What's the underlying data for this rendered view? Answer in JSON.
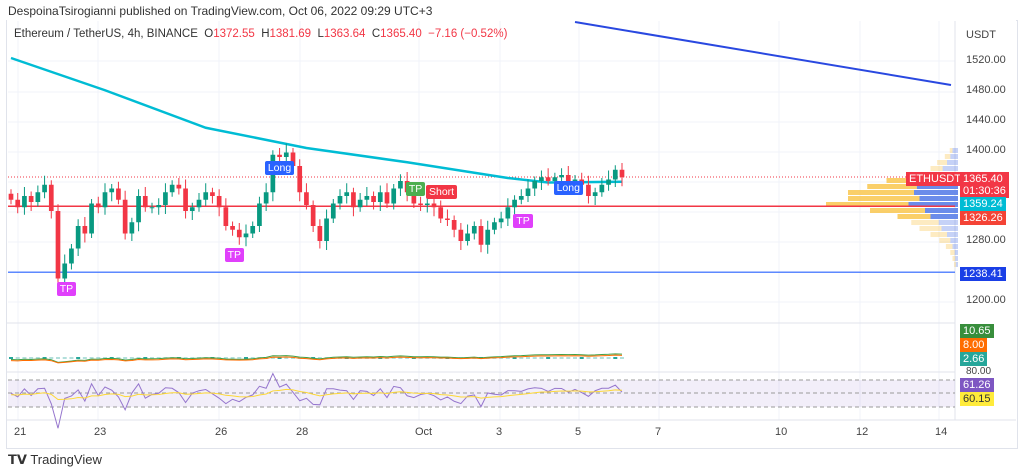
{
  "header": {
    "published": "DespoinaTsirogianni published on TradingView.com, Oct 06, 2022 09:29 UTC+3"
  },
  "legend": {
    "symbol": "Ethereum / TetherUS, 4h, BINANCE",
    "o_label": "O",
    "o": "1372.55",
    "h_label": "H",
    "h": "1381.69",
    "l_label": "L",
    "l": "1363.64",
    "c_label": "C",
    "c": "1365.40",
    "change": "−7.16 (−0.52%)"
  },
  "price_axis": {
    "currency": "USDT",
    "ticks": [
      "1520.00",
      "1480.00",
      "1440.00",
      "1400.00",
      "1280.00",
      "1200.00"
    ],
    "tick_values": [
      1520,
      1480,
      1440,
      1400,
      1280,
      1200
    ]
  },
  "price_labels": {
    "symbol": "ETHUSDT",
    "last": "1365.40",
    "countdown": "01:30:36",
    "ma": "1359.24",
    "red_level": "1326.26",
    "blue_level": "1238.41"
  },
  "indicator_labels": {
    "macd": "10.65",
    "signal": "8.00",
    "hist": "2.66",
    "rsi_level": "80.00",
    "rsi": "61.26",
    "rsi_ma": "60.15"
  },
  "date_axis": [
    {
      "t": "21",
      "x": 14
    },
    {
      "t": "23",
      "x": 94
    },
    {
      "t": "26",
      "x": 215
    },
    {
      "t": "28",
      "x": 296
    },
    {
      "t": "Oct",
      "x": 415
    },
    {
      "t": "3",
      "x": 496
    },
    {
      "t": "5",
      "x": 575
    },
    {
      "t": "7",
      "x": 655
    },
    {
      "t": "10",
      "x": 775
    },
    {
      "t": "12",
      "x": 856
    },
    {
      "t": "14",
      "x": 935
    }
  ],
  "annotations": [
    {
      "text": "Long",
      "color": "#2962ff",
      "i": 39
    },
    {
      "text": "TP",
      "color": "#e040fb",
      "i": 8
    },
    {
      "text": "TP",
      "color": "#e040fb",
      "i": 33
    },
    {
      "text": "TP",
      "color": "#4caf50",
      "i": 60
    },
    {
      "text": "Short",
      "color": "#f23645",
      "i": 63
    },
    {
      "text": "TP",
      "color": "#e040fb",
      "i": 76
    },
    {
      "text": "Long",
      "color": "#2962ff",
      "i": 82
    }
  ],
  "colors": {
    "up": "#089981",
    "down": "#f23645",
    "ma": "#00bcd4",
    "trend": "#2948e0",
    "red_level": "#f23645",
    "blue_level": "#2962ff"
  },
  "chart_data": {
    "type": "candlestick",
    "timeframe": "4h",
    "closes": [
      1335,
      1325,
      1340,
      1332,
      1345,
      1355,
      1320,
      1230,
      1250,
      1270,
      1300,
      1290,
      1330,
      1325,
      1345,
      1350,
      1335,
      1290,
      1305,
      1340,
      1325,
      1325,
      1328,
      1345,
      1355,
      1350,
      1320,
      1325,
      1335,
      1345,
      1340,
      1325,
      1300,
      1295,
      1285,
      1290,
      1300,
      1330,
      1345,
      1395,
      1392,
      1398,
      1380,
      1345,
      1328,
      1300,
      1280,
      1310,
      1330,
      1340,
      1345,
      1325,
      1335,
      1340,
      1332,
      1345,
      1330,
      1350,
      1360,
      1345,
      1330,
      1328,
      1330,
      1325,
      1310,
      1308,
      1295,
      1280,
      1290,
      1300,
      1275,
      1295,
      1305,
      1310,
      1325,
      1335,
      1340,
      1350,
      1360,
      1365,
      1360,
      1365,
      1368,
      1360,
      1362,
      1355,
      1340,
      1345,
      1355,
      1362,
      1375,
      1365
    ],
    "ma": [
      [
        0,
        1524
      ],
      [
        14,
        1481
      ],
      [
        29,
        1431
      ],
      [
        44,
        1404
      ],
      [
        59,
        1385
      ],
      [
        74,
        1364
      ],
      [
        80,
        1358
      ],
      [
        91,
        1359
      ]
    ],
    "trendline": [
      [
        84,
        1572
      ],
      [
        140,
        1488
      ]
    ],
    "levels": [
      1326.26,
      1238.41
    ],
    "volume_profile": [
      [
        1400,
        5,
        10
      ],
      [
        1392,
        10,
        14
      ],
      [
        1384,
        18,
        20
      ],
      [
        1376,
        22,
        28
      ],
      [
        1368,
        40,
        50
      ],
      [
        1360,
        60,
        70
      ],
      [
        1352,
        90,
        75
      ],
      [
        1344,
        120,
        80
      ],
      [
        1336,
        130,
        70
      ],
      [
        1328,
        150,
        90
      ],
      [
        1320,
        100,
        60
      ],
      [
        1312,
        60,
        50
      ],
      [
        1304,
        50,
        35
      ],
      [
        1296,
        40,
        30
      ],
      [
        1288,
        30,
        20
      ],
      [
        1280,
        20,
        14
      ],
      [
        1272,
        12,
        10
      ],
      [
        1264,
        8,
        6
      ],
      [
        1256,
        5,
        5
      ],
      [
        1248,
        3,
        4
      ]
    ]
  }
}
